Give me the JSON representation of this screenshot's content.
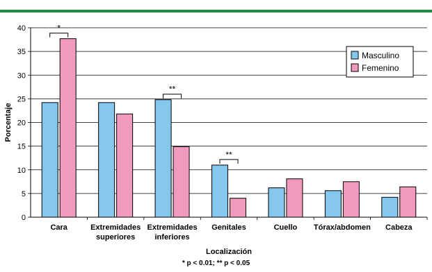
{
  "colors": {
    "accent": "#1a8a3c",
    "masculino": "#86c7ee",
    "femenino": "#f09bbd"
  },
  "footnote": "* p < 0.01; ** p < 0.05",
  "chart_data": {
    "type": "bar",
    "title": "",
    "xlabel": "Localización",
    "ylabel": "Porcentaje",
    "ylim": [
      0,
      40
    ],
    "yticks": [
      0,
      5,
      10,
      15,
      20,
      25,
      30,
      35,
      40
    ],
    "grid": true,
    "legend_position": "top-right",
    "categories": [
      [
        "Cara"
      ],
      [
        "Extremidades",
        "superiores"
      ],
      [
        "Extremidades",
        "inferiores"
      ],
      [
        "Genitales"
      ],
      [
        "Cuello"
      ],
      [
        "Tórax/abdomen"
      ],
      [
        "Cabeza"
      ]
    ],
    "series": [
      {
        "name": "Masculino",
        "color": "#86c7ee",
        "values": [
          24.2,
          24.2,
          24.8,
          11.0,
          6.2,
          5.6,
          4.2
        ]
      },
      {
        "name": "Femenino",
        "color": "#f09bbd",
        "values": [
          37.7,
          21.8,
          14.9,
          4.0,
          8.1,
          7.5,
          6.4
        ]
      }
    ],
    "annotations": [
      {
        "category_index": 0,
        "label": "*"
      },
      {
        "category_index": 2,
        "label": "**"
      },
      {
        "category_index": 3,
        "label": "**"
      }
    ]
  }
}
